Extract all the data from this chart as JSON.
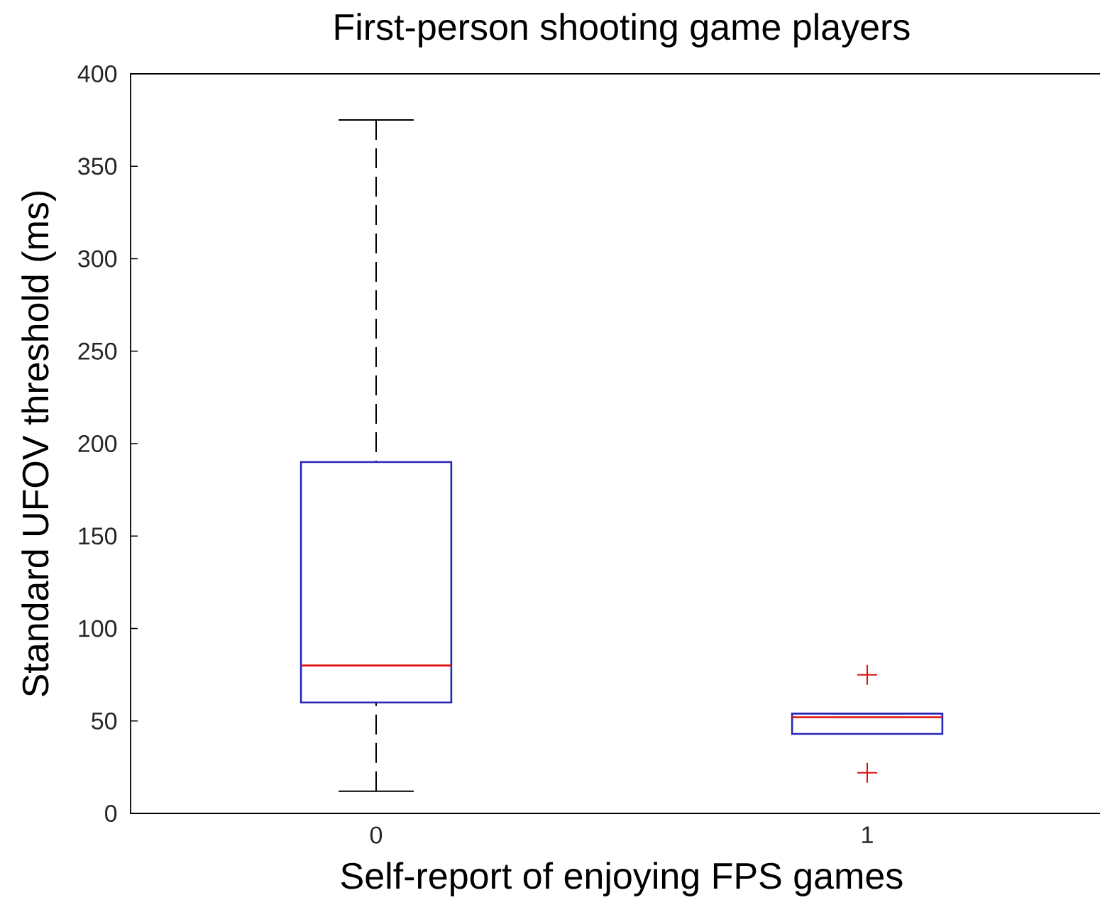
{
  "chart_data": {
    "type": "box",
    "title": "First-person shooting game players",
    "xlabel": "Self-report of enjoying FPS games",
    "ylabel": "Standard UFOV threshold (ms)",
    "categories": [
      "0",
      "1"
    ],
    "boxes": [
      {
        "low": 12,
        "q1": 60,
        "median": 80,
        "q3": 190,
        "high": 375
      },
      {
        "low": 43,
        "q1": 43,
        "median": 52,
        "q3": 54,
        "high": 54,
        "outliers": [
          75,
          22
        ]
      }
    ],
    "color": "#2626b8",
    "marker": "cross",
    "ylim": [
      0,
      400
    ],
    "yticks": [
      0,
      50,
      100,
      150,
      200,
      250,
      300,
      350,
      400
    ]
  }
}
